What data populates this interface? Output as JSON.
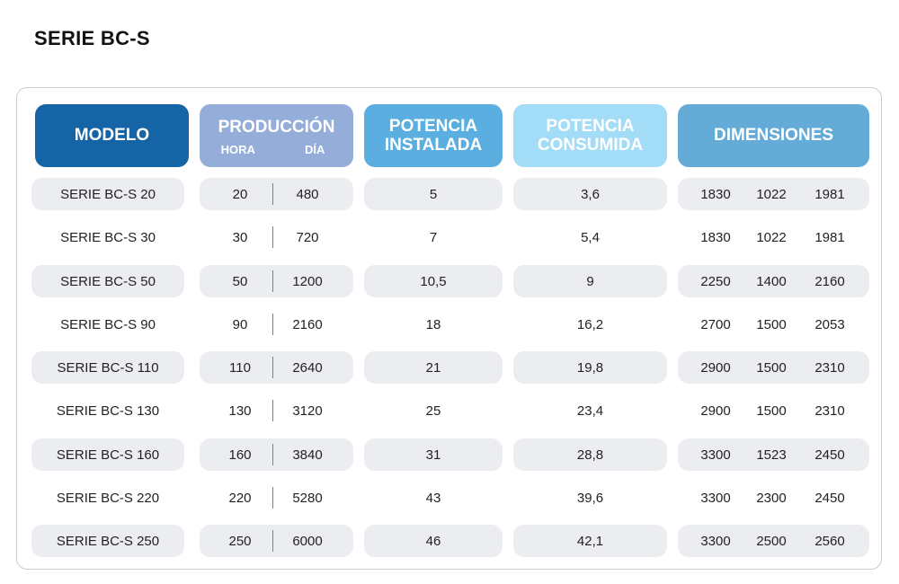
{
  "title": "SERIE BC-S",
  "headers": {
    "modelo": "MODELO",
    "produccion": "PRODUCCIÓN",
    "hora": "HORA",
    "dia": "DÍA",
    "potencia_instalada_1": "POTENCIA",
    "potencia_instalada_2": "INSTALADA",
    "potencia_consumida_1": "POTENCIA",
    "potencia_consumida_2": "CONSUMIDA",
    "dimensiones": "DIMENSIONES"
  },
  "colors": {
    "modelo_header": "#1565a6",
    "produccion_header": "#94aed9",
    "instalada_header": "#5aaee0",
    "consumida_header": "#a3dcf7",
    "dimensiones_header": "#64abd8",
    "row_shade": "#ecedf1"
  },
  "rows": [
    {
      "modelo": "SERIE BC-S 20",
      "hora": "20",
      "dia": "480",
      "instalada": "5",
      "consumida": "3,6",
      "dim1": "1830",
      "dim2": "1022",
      "dim3": "1981"
    },
    {
      "modelo": "SERIE BC-S 30",
      "hora": "30",
      "dia": "720",
      "instalada": "7",
      "consumida": "5,4",
      "dim1": "1830",
      "dim2": "1022",
      "dim3": "1981"
    },
    {
      "modelo": "SERIE BC-S 50",
      "hora": "50",
      "dia": "1200",
      "instalada": "10,5",
      "consumida": "9",
      "dim1": "2250",
      "dim2": "1400",
      "dim3": "2160"
    },
    {
      "modelo": "SERIE BC-S 90",
      "hora": "90",
      "dia": "2160",
      "instalada": "18",
      "consumida": "16,2",
      "dim1": "2700",
      "dim2": "1500",
      "dim3": "2053"
    },
    {
      "modelo": "SERIE BC-S 110",
      "hora": "110",
      "dia": "2640",
      "instalada": "21",
      "consumida": "19,8",
      "dim1": "2900",
      "dim2": "1500",
      "dim3": "2310"
    },
    {
      "modelo": "SERIE BC-S 130",
      "hora": "130",
      "dia": "3120",
      "instalada": "25",
      "consumida": "23,4",
      "dim1": "2900",
      "dim2": "1500",
      "dim3": "2310"
    },
    {
      "modelo": "SERIE BC-S 160",
      "hora": "160",
      "dia": "3840",
      "instalada": "31",
      "consumida": "28,8",
      "dim1": "3300",
      "dim2": "1523",
      "dim3": "2450"
    },
    {
      "modelo": "SERIE BC-S 220",
      "hora": "220",
      "dia": "5280",
      "instalada": "43",
      "consumida": "39,6",
      "dim1": "3300",
      "dim2": "2300",
      "dim3": "2450"
    },
    {
      "modelo": "SERIE BC-S 250",
      "hora": "250",
      "dia": "6000",
      "instalada": "46",
      "consumida": "42,1",
      "dim1": "3300",
      "dim2": "2500",
      "dim3": "2560"
    }
  ]
}
